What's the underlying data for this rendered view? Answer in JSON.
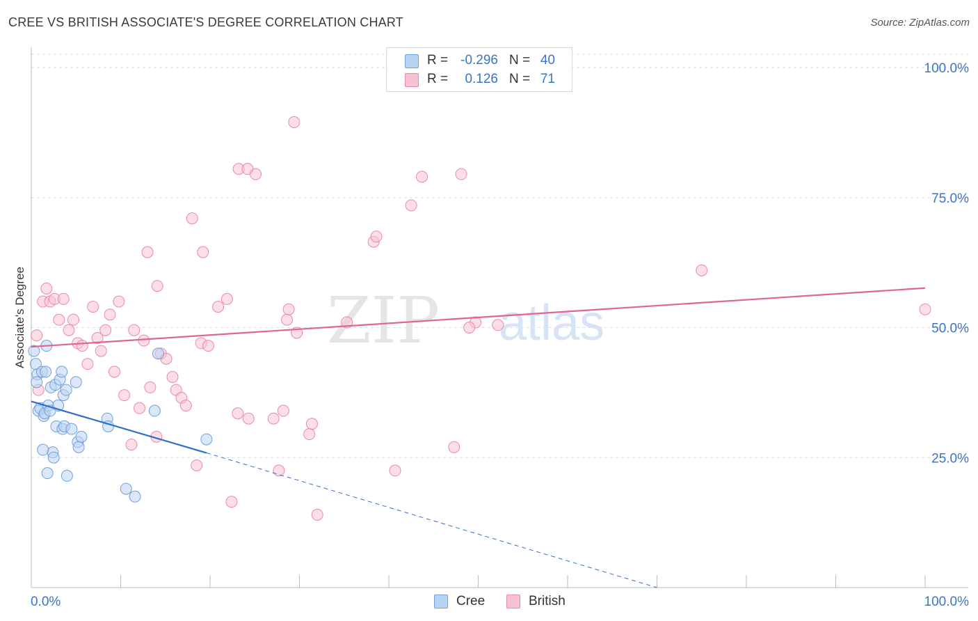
{
  "title": "CREE VS BRITISH ASSOCIATE'S DEGREE CORRELATION CHART",
  "source": "Source: ZipAtlas.com",
  "legend": {
    "r_label": "R =",
    "n_label": "N =",
    "rows": [
      {
        "name": "Cree",
        "r": "-0.296",
        "n": "40"
      },
      {
        "name": "British",
        "r": "0.126",
        "n": "71"
      }
    ]
  },
  "colors": {
    "cree_fill": "#b9d3f3",
    "cree_stroke": "#6f9fdc",
    "cree_line": "#2f6fcb",
    "british_fill": "#f7c2d2",
    "british_stroke": "#e98aa8",
    "british_line": "#e0668f",
    "tick_label": "#3a74c4",
    "grid": "#dcdcdc"
  },
  "chart_data": {
    "type": "scatter",
    "title": "CREE VS BRITISH ASSOCIATE'S DEGREE CORRELATION CHART",
    "xlabel": "",
    "ylabel": "Associate's Degree",
    "xlim": [
      0,
      100
    ],
    "ylim": [
      0,
      100
    ],
    "x_tick_labels": [
      {
        "value": 0,
        "label": "0.0%"
      },
      {
        "value": 100,
        "label": "100.0%"
      }
    ],
    "y_tick_labels": [
      {
        "value": 25,
        "label": "25.0%"
      },
      {
        "value": 50,
        "label": "50.0%"
      },
      {
        "value": 75,
        "label": "75.0%"
      },
      {
        "value": 100,
        "label": "100.0%"
      }
    ],
    "watermark": {
      "zip": "ZIP",
      "atlas": "atlas"
    },
    "series": [
      {
        "name": "Cree",
        "points": [
          [
            0.3,
            45.5
          ],
          [
            0.5,
            43
          ],
          [
            0.7,
            41
          ],
          [
            0.6,
            39.5
          ],
          [
            0.8,
            34
          ],
          [
            1.0,
            34.5
          ],
          [
            1.2,
            41.5
          ],
          [
            1.4,
            33
          ],
          [
            1.5,
            33.5
          ],
          [
            1.6,
            41.5
          ],
          [
            1.8,
            22
          ],
          [
            1.9,
            35
          ],
          [
            2.1,
            34
          ],
          [
            2.2,
            38.5
          ],
          [
            2.4,
            26
          ],
          [
            2.5,
            25
          ],
          [
            2.7,
            39
          ],
          [
            2.8,
            31
          ],
          [
            3.0,
            35
          ],
          [
            3.2,
            40
          ],
          [
            3.4,
            41.5
          ],
          [
            3.5,
            30.5
          ],
          [
            3.6,
            37
          ],
          [
            3.7,
            31
          ],
          [
            3.9,
            38
          ],
          [
            4.0,
            21.5
          ],
          [
            4.5,
            30.5
          ],
          [
            5.0,
            39.5
          ],
          [
            5.2,
            28
          ],
          [
            5.3,
            27
          ],
          [
            5.6,
            29
          ],
          [
            8.5,
            32.5
          ],
          [
            8.6,
            31
          ],
          [
            10.6,
            19
          ],
          [
            11.6,
            17.5
          ],
          [
            13.8,
            34
          ],
          [
            14.2,
            45
          ],
          [
            1.3,
            26.5
          ],
          [
            19.6,
            28.5
          ],
          [
            1.7,
            46.5
          ]
        ],
        "trend_solid": {
          "x": [
            0,
            19.6
          ],
          "y": [
            35.8,
            25.9
          ]
        },
        "trend_dashed": {
          "x": [
            19.6,
            70
          ],
          "y": [
            25.9,
            0
          ]
        }
      },
      {
        "name": "British",
        "points": [
          [
            0.6,
            48.5
          ],
          [
            0.8,
            38
          ],
          [
            1.3,
            55
          ],
          [
            1.7,
            57.5
          ],
          [
            2.1,
            55
          ],
          [
            2.6,
            55.5
          ],
          [
            3.1,
            51.5
          ],
          [
            3.6,
            55.5
          ],
          [
            4.2,
            49.5
          ],
          [
            4.7,
            51.5
          ],
          [
            5.2,
            47
          ],
          [
            5.7,
            46.5
          ],
          [
            6.3,
            43
          ],
          [
            6.9,
            54
          ],
          [
            7.4,
            48
          ],
          [
            7.8,
            45.5
          ],
          [
            8.3,
            49.5
          ],
          [
            8.8,
            52.5
          ],
          [
            9.3,
            41.5
          ],
          [
            9.8,
            55
          ],
          [
            10.4,
            37
          ],
          [
            11.2,
            27.5
          ],
          [
            11.5,
            49.5
          ],
          [
            12.1,
            34.5
          ],
          [
            12.6,
            47.5
          ],
          [
            13.0,
            64.5
          ],
          [
            13.3,
            38.5
          ],
          [
            14.0,
            29
          ],
          [
            14.1,
            58
          ],
          [
            14.5,
            45
          ],
          [
            15.1,
            44
          ],
          [
            15.8,
            40.5
          ],
          [
            16.2,
            38
          ],
          [
            16.8,
            36.5
          ],
          [
            17.3,
            35
          ],
          [
            18.0,
            71
          ],
          [
            18.5,
            23.5
          ],
          [
            19.0,
            47
          ],
          [
            19.2,
            64.5
          ],
          [
            19.8,
            46.5
          ],
          [
            20.9,
            54
          ],
          [
            21.9,
            55.5
          ],
          [
            22.4,
            16.5
          ],
          [
            23.1,
            33.5
          ],
          [
            23.2,
            80.5
          ],
          [
            24.2,
            80.5
          ],
          [
            24.3,
            32.5
          ],
          [
            25.1,
            79.5
          ],
          [
            27.1,
            32.5
          ],
          [
            27.7,
            22.5
          ],
          [
            28.2,
            34
          ],
          [
            28.6,
            51.5
          ],
          [
            28.8,
            53.5
          ],
          [
            29.4,
            89.5
          ],
          [
            29.7,
            49
          ],
          [
            31.1,
            29.5
          ],
          [
            31.4,
            31.5
          ],
          [
            32.0,
            14
          ],
          [
            35.3,
            51
          ],
          [
            38.3,
            66.5
          ],
          [
            38.6,
            67.5
          ],
          [
            40.7,
            22.5
          ],
          [
            42.5,
            73.5
          ],
          [
            43.7,
            79
          ],
          [
            47.3,
            27
          ],
          [
            48.1,
            79.5
          ],
          [
            49.7,
            51
          ],
          [
            52.2,
            50.5
          ],
          [
            75.0,
            61
          ],
          [
            100.0,
            53.5
          ],
          [
            49.0,
            50
          ]
        ],
        "trend": {
          "x": [
            0,
            100
          ],
          "y": [
            46.3,
            57.6
          ]
        }
      }
    ]
  }
}
